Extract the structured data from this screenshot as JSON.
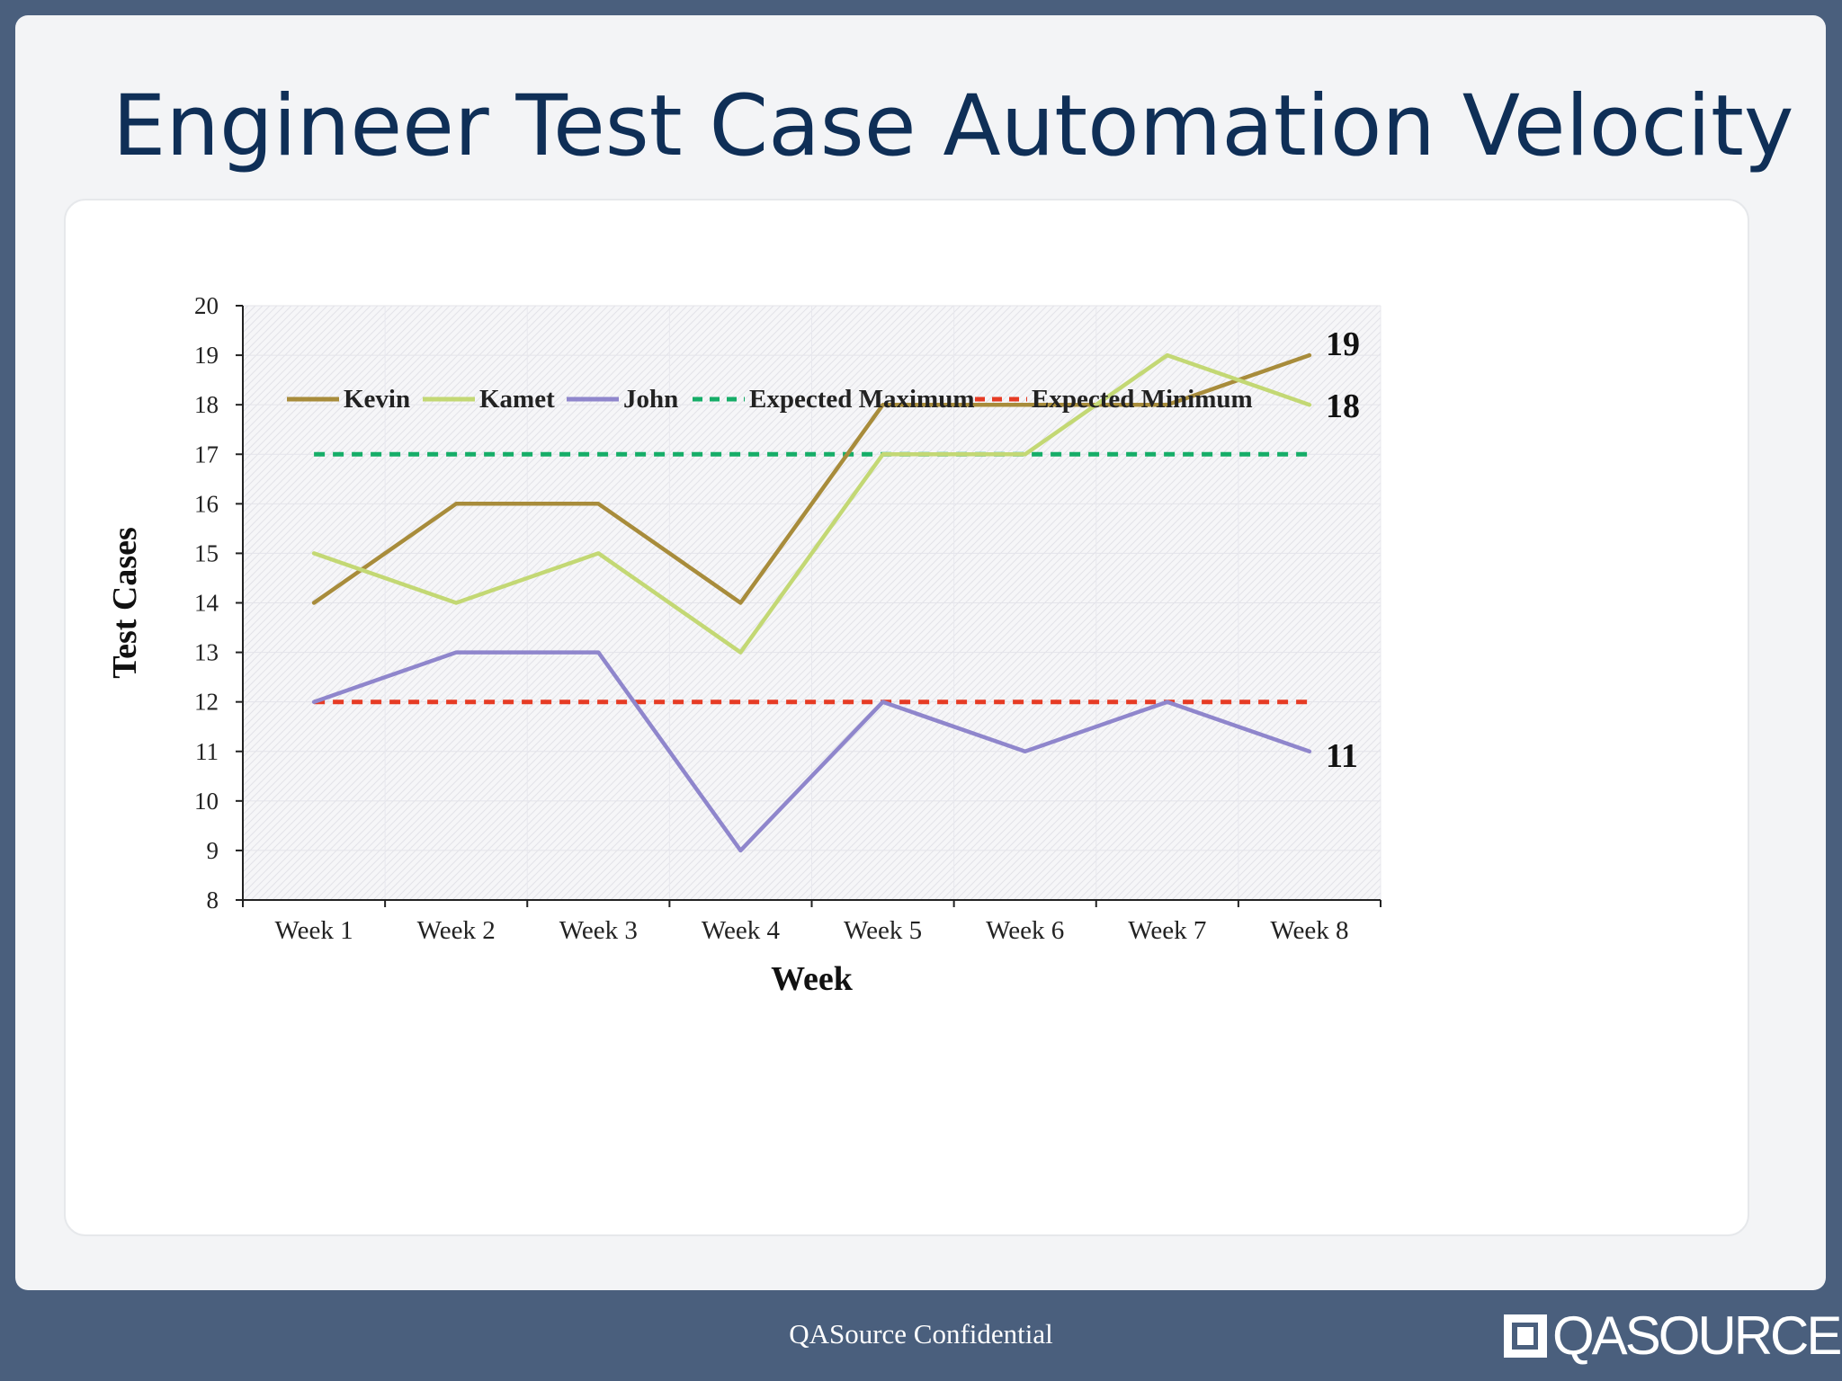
{
  "slide": {
    "title": "Engineer Test Case Automation Velocity",
    "footer": "QASource Confidential",
    "logo_text": "QASOURCE"
  },
  "colors": {
    "page_background": "#4a5f7d",
    "title": "#0f2f57",
    "kevin": "#a88c3b",
    "kamet": "#c3d874",
    "john": "#8f86cc",
    "expected_max": "#16ad68",
    "expected_min": "#e63b24"
  },
  "chart_data": {
    "type": "line",
    "categories": [
      "Week 1",
      "Week 2",
      "Week 3",
      "Week 4",
      "Week 5",
      "Week 6",
      "Week 7",
      "Week 8"
    ],
    "series": [
      {
        "name": "Kevin",
        "color": "#a88c3b",
        "dashed": false,
        "values": [
          14,
          16,
          16,
          14,
          18,
          18,
          18,
          19
        ],
        "end_label": "19"
      },
      {
        "name": "Kamet",
        "color": "#c3d874",
        "dashed": false,
        "values": [
          15,
          14,
          15,
          13,
          17,
          17,
          19,
          18
        ],
        "end_label": "18"
      },
      {
        "name": "John",
        "color": "#8f86cc",
        "dashed": false,
        "values": [
          12,
          13,
          13,
          9,
          12,
          11,
          12,
          11
        ],
        "end_label": "11"
      },
      {
        "name": "Expected Maximum",
        "color": "#16ad68",
        "dashed": true,
        "values": [
          17,
          17,
          17,
          17,
          17,
          17,
          17,
          17
        ]
      },
      {
        "name": "Expected Minimum",
        "color": "#e63b24",
        "dashed": true,
        "values": [
          12,
          12,
          12,
          12,
          12,
          12,
          12,
          12
        ]
      }
    ],
    "xlabel": "Week",
    "ylabel": "Test Cases",
    "ylim": [
      8,
      20
    ],
    "yticks": [
      "8",
      "9",
      "10",
      "11",
      "12",
      "13",
      "14",
      "15",
      "16",
      "17",
      "18",
      "19",
      "20"
    ],
    "grid": true,
    "legend_position": "top"
  }
}
